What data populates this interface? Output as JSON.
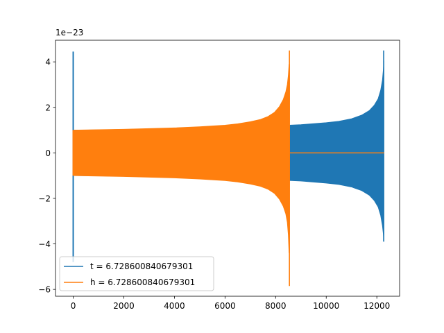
{
  "chart_data": {
    "type": "line",
    "title": "",
    "xlabel": "",
    "ylabel": "",
    "y_scale_label": "1e−23",
    "y_scale_factor": 1e-23,
    "xlim": [
      -700,
      12900
    ],
    "ylim": [
      -6.3,
      4.95
    ],
    "xticks": [
      0,
      2000,
      4000,
      6000,
      8000,
      10000,
      12000
    ],
    "xtick_labels": [
      "0",
      "2000",
      "4000",
      "6000",
      "8000",
      "10000",
      "12000"
    ],
    "yticks": [
      -6,
      -4,
      -2,
      0,
      2,
      4
    ],
    "ytick_labels": [
      "−6",
      "−4",
      "−2",
      "0",
      "2",
      "4"
    ],
    "grid": false,
    "legend_position": "lower-left",
    "series": [
      {
        "name": "t = 6.728600840679301",
        "color": "#1f77b4",
        "style": "oscillating-band",
        "start_spike": {
          "x": 0,
          "ymax": 4.45,
          "ymin": -4.8
        },
        "envelope": {
          "x": [
            10,
            1000,
            2000,
            3000,
            4000,
            5000,
            6000,
            7000,
            8000,
            9000,
            10000,
            10500,
            11000,
            11400,
            11700,
            11900,
            12050,
            12150,
            12220,
            12260,
            12280
          ],
          "upper": [
            1.0,
            1.01,
            1.03,
            1.05,
            1.07,
            1.09,
            1.12,
            1.15,
            1.19,
            1.24,
            1.33,
            1.39,
            1.5,
            1.66,
            1.86,
            2.1,
            2.38,
            2.75,
            3.2,
            3.7,
            4.05
          ],
          "lower": [
            -1.0,
            -1.01,
            -1.03,
            -1.05,
            -1.07,
            -1.09,
            -1.12,
            -1.15,
            -1.19,
            -1.24,
            -1.33,
            -1.39,
            -1.5,
            -1.66,
            -1.86,
            -2.1,
            -2.38,
            -2.75,
            -3.2,
            -3.6,
            -3.9
          ]
        },
        "end_spike": {
          "x": 12270,
          "ymax": 4.5,
          "ymin": -3.9
        },
        "tail": {
          "x": [
            12280,
            12290
          ],
          "y": [
            0,
            0
          ]
        }
      },
      {
        "name": "h = 6.728600840679301",
        "color": "#ff7f0e",
        "style": "oscillating-band",
        "start_spike": {
          "x": 0,
          "ymax": 1.0,
          "ymin": -1.0
        },
        "envelope": {
          "x": [
            10,
            1000,
            2000,
            3000,
            4000,
            5000,
            6000,
            6500,
            7000,
            7400,
            7700,
            7950,
            8150,
            8300,
            8400,
            8460,
            8500,
            8530
          ],
          "upper": [
            1.0,
            1.02,
            1.04,
            1.07,
            1.1,
            1.15,
            1.22,
            1.28,
            1.37,
            1.47,
            1.6,
            1.78,
            2.04,
            2.35,
            2.68,
            3.0,
            3.4,
            3.9
          ],
          "lower": [
            -1.0,
            -1.02,
            -1.04,
            -1.07,
            -1.1,
            -1.15,
            -1.22,
            -1.28,
            -1.37,
            -1.47,
            -1.6,
            -1.78,
            -2.04,
            -2.35,
            -2.68,
            -3.05,
            -3.6,
            -4.4
          ]
        },
        "end_spike": {
          "x": 8545,
          "ymax": 4.5,
          "ymin": -5.85
        },
        "tail": {
          "x": [
            8560,
            12290
          ],
          "y": [
            0,
            0
          ]
        }
      }
    ]
  }
}
